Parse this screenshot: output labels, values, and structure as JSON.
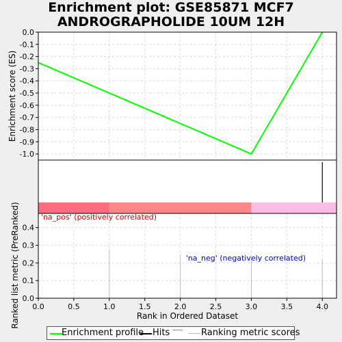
{
  "title_line1": "Enrichment plot: GSE85871 MCF7",
  "title_line2": "ANDROGRAPHOLIDE 10UM 12H",
  "chart_data": {
    "type": "line",
    "xlabel": "Rank in Ordered Dataset",
    "xlim": [
      0,
      4.2
    ],
    "x_ticks": [
      "0.0",
      "0.5",
      "1.0",
      "1.5",
      "2.0",
      "2.5",
      "3.0",
      "3.5",
      "4.0"
    ],
    "grid": true,
    "es_panel": {
      "ylabel": "Enrichment score (ES)",
      "ylim": [
        -1.05,
        0.0
      ],
      "y_ticks": [
        "0.0",
        "-0.1",
        "-0.2",
        "-0.3",
        "-0.4",
        "-0.5",
        "-0.6",
        "-0.7",
        "-0.8",
        "-0.9",
        "-1.0"
      ],
      "series": [
        {
          "name": "Enrichment profile",
          "color": "#00ff00",
          "x": [
            0,
            3,
            4
          ],
          "y": [
            -0.25,
            -1.0,
            0.0
          ]
        }
      ]
    },
    "hits": {
      "name": "Hits",
      "x": [
        4
      ],
      "color": "#000000"
    },
    "colorbar": [
      {
        "from": 0,
        "to": 1,
        "color": "#ff6c80"
      },
      {
        "from": 1,
        "to": 3,
        "color": "#fe8888"
      },
      {
        "from": 3,
        "to": 4.2,
        "color": "#fbbce6"
      }
    ],
    "metric_panel": {
      "ylabel": "Ranked list metric (PreRanked)",
      "ylim": [
        0,
        0.48
      ],
      "y_ticks": [
        "0.0",
        "0.1",
        "0.2",
        "0.3",
        "0.4"
      ],
      "series": [
        {
          "name": "Ranking metric scores",
          "color": "#bbbbbb",
          "x": [
            1,
            2,
            3,
            4
          ],
          "y": [
            0.275,
            0.245,
            0.225,
            0.22
          ]
        }
      ],
      "annotations": [
        {
          "text": "'na_pos' (positively correlated)",
          "color": "#cc0000"
        },
        {
          "text": "'na_neg' (negatively correlated)",
          "color": "#0000cc"
        }
      ]
    },
    "legend": {
      "placement": "bottom",
      "items": [
        {
          "label": "Enrichment profile",
          "color": "#00ff00"
        },
        {
          "label": "Hits",
          "color": "#000000"
        },
        {
          "label": "",
          "color": "#888888"
        },
        {
          "label": "Ranking metric scores",
          "color": "#bbbbbb"
        }
      ]
    }
  }
}
